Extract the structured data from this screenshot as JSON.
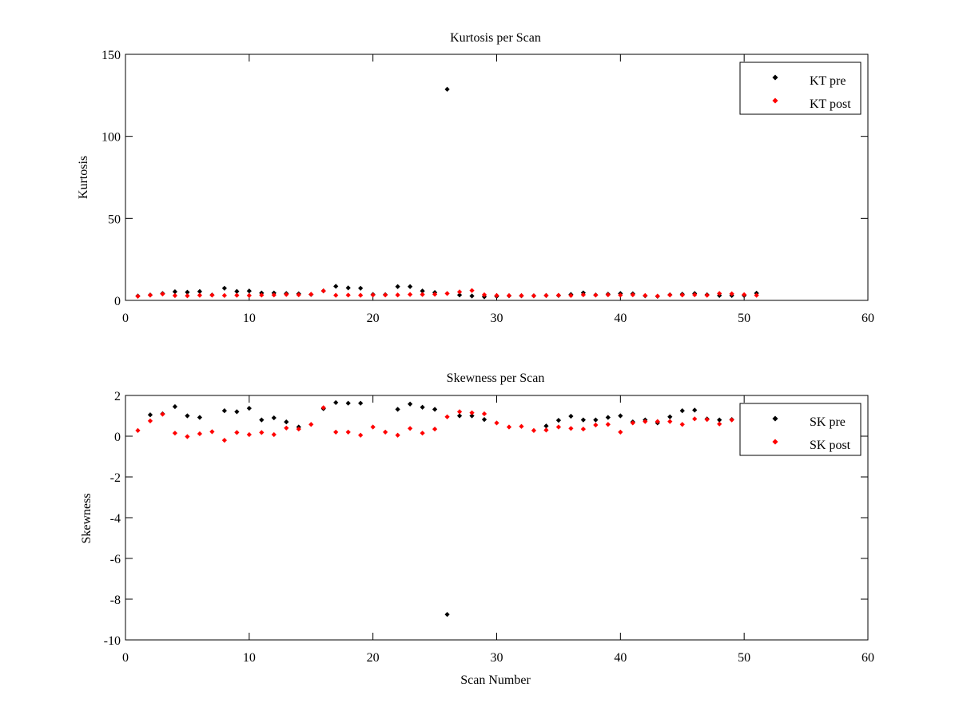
{
  "chart_data": [
    {
      "type": "scatter",
      "title": "Kurtosis per Scan",
      "xlabel": "",
      "ylabel": "Kurtosis",
      "xlim": [
        0,
        60
      ],
      "ylim": [
        0,
        150
      ],
      "xticks": [
        "0",
        "10",
        "20",
        "30",
        "40",
        "50",
        "60"
      ],
      "yticks": [
        "0",
        "50",
        "100",
        "150"
      ],
      "grid": false,
      "legend_position": "top-right",
      "series": [
        {
          "name": "KT pre",
          "color": "#000000",
          "x": [
            1,
            2,
            3,
            4,
            5,
            6,
            7,
            8,
            9,
            10,
            11,
            12,
            13,
            14,
            15,
            16,
            17,
            18,
            19,
            20,
            21,
            22,
            23,
            24,
            25,
            26,
            27,
            28,
            29,
            30,
            31,
            32,
            33,
            34,
            35,
            36,
            37,
            38,
            39,
            40,
            41,
            42,
            43,
            44,
            45,
            46,
            47,
            48,
            49,
            50,
            51
          ],
          "y": [
            2.7,
            3.3,
            4.2,
            5.3,
            5.0,
            5.4,
            3.3,
            7.4,
            5.5,
            5.7,
            4.5,
            4.5,
            4.2,
            4.0,
            3.6,
            5.8,
            8.6,
            7.6,
            7.4,
            3.6,
            3.5,
            8.4,
            8.4,
            5.7,
            4.8,
            128.7,
            3.3,
            2.7,
            2.2,
            2.5,
            2.8,
            2.8,
            2.8,
            3.0,
            3.0,
            3.6,
            4.6,
            3.3,
            3.8,
            4.2,
            4.0,
            2.8,
            2.5,
            3.4,
            3.8,
            4.2,
            3.4,
            3.0,
            3.0,
            3.0,
            4.4
          ]
        },
        {
          "name": "KT post",
          "color": "#ff0000",
          "x": [
            1,
            2,
            3,
            4,
            5,
            6,
            7,
            8,
            9,
            10,
            11,
            12,
            13,
            14,
            15,
            16,
            17,
            18,
            19,
            20,
            21,
            22,
            23,
            24,
            25,
            26,
            27,
            28,
            29,
            30,
            31,
            32,
            33,
            34,
            35,
            36,
            37,
            38,
            39,
            40,
            41,
            42,
            43,
            44,
            45,
            46,
            47,
            48,
            49,
            50,
            51
          ],
          "y": [
            2.5,
            3.2,
            3.9,
            2.9,
            2.8,
            3.1,
            3.2,
            3.0,
            3.1,
            3.0,
            3.2,
            3.3,
            3.6,
            3.4,
            3.7,
            5.8,
            3.1,
            3.2,
            3.1,
            3.3,
            3.3,
            3.3,
            3.6,
            3.6,
            3.7,
            4.2,
            5.2,
            6.0,
            3.4,
            3.0,
            2.9,
            2.9,
            2.8,
            3.0,
            3.1,
            3.0,
            3.4,
            3.2,
            3.4,
            3.2,
            3.4,
            3.0,
            2.6,
            3.3,
            3.3,
            3.4,
            3.1,
            4.2,
            4.0,
            3.5,
            3.1
          ]
        }
      ]
    },
    {
      "type": "scatter",
      "title": "Skewness per Scan",
      "xlabel": "Scan Number",
      "ylabel": "Skewness",
      "xlim": [
        0,
        60
      ],
      "ylim": [
        -10,
        2
      ],
      "xticks": [
        "0",
        "10",
        "20",
        "30",
        "40",
        "50",
        "60"
      ],
      "yticks": [
        "-10",
        "-8",
        "-6",
        "-4",
        "-2",
        "0",
        "2"
      ],
      "grid": false,
      "legend_position": "top-right",
      "series": [
        {
          "name": "SK pre",
          "color": "#000000",
          "x": [
            2,
            3,
            4,
            5,
            6,
            8,
            9,
            10,
            11,
            12,
            13,
            14,
            16,
            17,
            18,
            19,
            22,
            23,
            24,
            25,
            26,
            27,
            28,
            29,
            34,
            35,
            36,
            37,
            38,
            39,
            40,
            41,
            42,
            43,
            44,
            45,
            46,
            47,
            48,
            49
          ],
          "y": [
            1.05,
            1.1,
            1.45,
            1.0,
            0.92,
            1.25,
            1.2,
            1.37,
            0.8,
            0.9,
            0.7,
            0.45,
            1.35,
            1.65,
            1.62,
            1.62,
            1.32,
            1.58,
            1.42,
            1.32,
            -8.75,
            1.0,
            1.0,
            0.82,
            0.5,
            0.78,
            0.98,
            0.8,
            0.8,
            0.92,
            1.0,
            0.7,
            0.8,
            0.65,
            0.95,
            1.25,
            1.28,
            0.85,
            0.8,
            0.82
          ]
        },
        {
          "name": "SK post",
          "color": "#ff0000",
          "x": [
            1,
            2,
            3,
            4,
            5,
            6,
            7,
            8,
            9,
            10,
            11,
            12,
            13,
            14,
            15,
            16,
            17,
            18,
            19,
            20,
            21,
            22,
            23,
            24,
            25,
            26,
            27,
            28,
            29,
            30,
            31,
            32,
            33,
            34,
            35,
            36,
            37,
            38,
            39,
            40,
            41,
            42,
            43,
            44,
            45,
            46,
            47,
            48,
            49
          ],
          "y": [
            0.28,
            0.75,
            1.08,
            0.15,
            -0.02,
            0.12,
            0.22,
            -0.2,
            0.18,
            0.08,
            0.18,
            0.08,
            0.4,
            0.35,
            0.58,
            1.4,
            0.2,
            0.2,
            0.05,
            0.45,
            0.2,
            0.05,
            0.38,
            0.15,
            0.35,
            0.95,
            1.2,
            1.15,
            1.1,
            0.65,
            0.45,
            0.48,
            0.28,
            0.3,
            0.45,
            0.38,
            0.35,
            0.55,
            0.58,
            0.2,
            0.65,
            0.72,
            0.72,
            0.72,
            0.58,
            0.85,
            0.82,
            0.6,
            0.8
          ]
        }
      ]
    }
  ]
}
